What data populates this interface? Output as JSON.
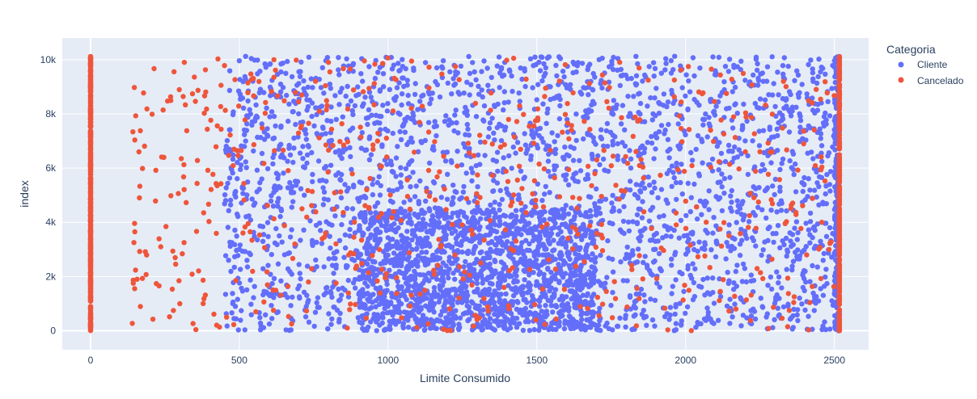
{
  "chart_data": {
    "type": "scatter",
    "xlabel": "Limite Consumido",
    "ylabel": "index",
    "xlim": [
      -95,
      2615
    ],
    "ylim": [
      -700,
      10800
    ],
    "x_ticks": [
      0,
      500,
      1000,
      1500,
      2000,
      2500
    ],
    "x_tick_labels": [
      "0",
      "500",
      "1000",
      "1500",
      "2000",
      "2500"
    ],
    "y_ticks": [
      0,
      2000,
      4000,
      6000,
      8000,
      10000
    ],
    "y_tick_labels": [
      "0",
      "2k",
      "4k",
      "6k",
      "8k",
      "10k"
    ],
    "grid": true,
    "legend": {
      "title": "Categoria",
      "placement": "top-right",
      "entries": [
        "Cliente",
        "Cancelado"
      ]
    },
    "series": [
      {
        "name": "Cliente",
        "color": "#636efa",
        "x_range": [
          450,
          2517
        ],
        "y_range": [
          0,
          10127
        ],
        "approx_points": 6800,
        "vertical_stripe_x": 2517
      },
      {
        "name": "Cancelado",
        "color": "#ef553b",
        "x_range": [
          0,
          2517
        ],
        "y_range": [
          0,
          10127
        ],
        "approx_points": 1627,
        "vertical_stripe_x": [
          0,
          2517
        ]
      }
    ],
    "colors": {
      "plot_bg": "#e5ecf6",
      "grid": "#ffffff",
      "text": "#2a3f5f"
    }
  }
}
